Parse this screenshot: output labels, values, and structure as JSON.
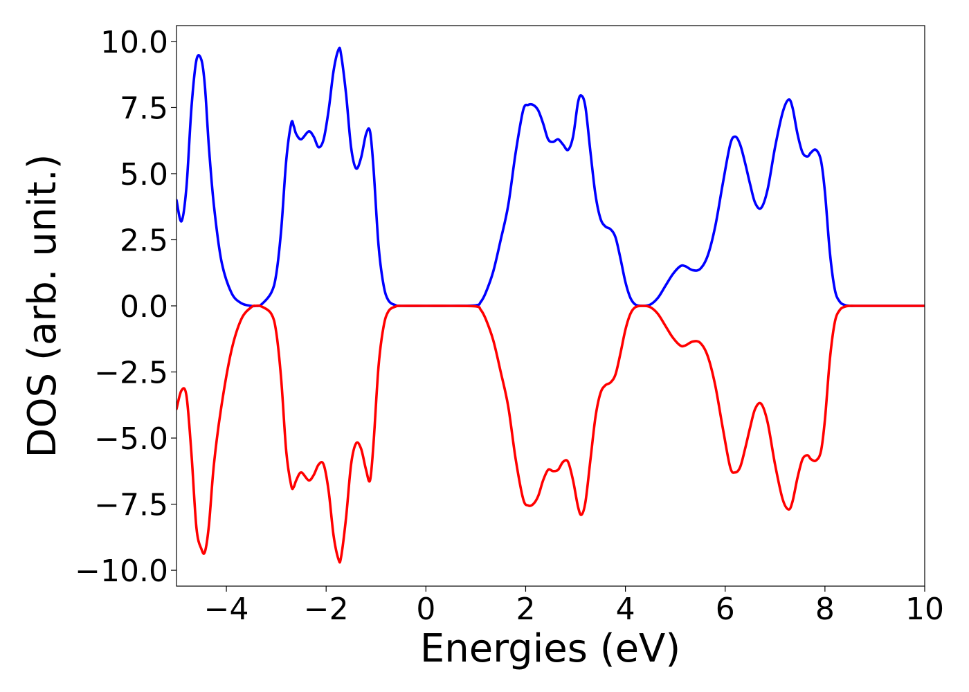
{
  "chart_data": {
    "type": "line",
    "title": "",
    "xlabel": "Energies (eV)",
    "ylabel": "DOS (arb. unit.)",
    "xlim": [
      -5,
      10
    ],
    "ylim": [
      -10.6,
      10.6
    ],
    "xticks": [
      -4,
      -2,
      0,
      2,
      4,
      6,
      8,
      10
    ],
    "xtick_labels": [
      "−4",
      "−2",
      "0",
      "2",
      "4",
      "6",
      "8",
      "10"
    ],
    "yticks": [
      10.0,
      7.5,
      5.0,
      2.5,
      0.0,
      -2.5,
      -5.0,
      -7.5,
      -10.0
    ],
    "ytick_labels": [
      "10.0",
      "7.5",
      "5.0",
      "2.5",
      "0.0",
      "−2.5",
      "−5.0",
      "−7.5",
      "−10.0"
    ],
    "grid": false,
    "legend": "none",
    "series": [
      {
        "color": "#0000ff",
        "x": [
          -5.0,
          -4.9,
          -4.8,
          -4.7,
          -4.6,
          -4.5,
          -4.43,
          -4.35,
          -4.25,
          -4.1,
          -3.9,
          -3.7,
          -3.5,
          -3.4,
          -3.3,
          -3.1,
          -3.0,
          -2.9,
          -2.8,
          -2.7,
          -2.65,
          -2.6,
          -2.5,
          -2.35,
          -2.25,
          -2.15,
          -2.05,
          -1.95,
          -1.85,
          -1.75,
          -1.7,
          -1.6,
          -1.5,
          -1.4,
          -1.3,
          -1.2,
          -1.12,
          -1.05,
          -0.95,
          -0.85,
          -0.75,
          -0.6,
          -0.5,
          0.0,
          0.5,
          1.0,
          1.1,
          1.2,
          1.35,
          1.5,
          1.65,
          1.8,
          1.95,
          2.05,
          2.15,
          2.25,
          2.35,
          2.45,
          2.55,
          2.65,
          2.75,
          2.85,
          2.95,
          3.05,
          3.12,
          3.2,
          3.3,
          3.4,
          3.5,
          3.6,
          3.7,
          3.8,
          3.9,
          4.0,
          4.1,
          4.2,
          4.35,
          4.5,
          4.65,
          4.8,
          4.95,
          5.1,
          5.2,
          5.35,
          5.5,
          5.65,
          5.8,
          5.95,
          6.1,
          6.2,
          6.3,
          6.4,
          6.5,
          6.6,
          6.72,
          6.85,
          7.0,
          7.15,
          7.27,
          7.35,
          7.45,
          7.55,
          7.65,
          7.72,
          7.82,
          7.92,
          8.0,
          8.1,
          8.2,
          8.3,
          8.4,
          8.5,
          8.6,
          9.0,
          10.0
        ],
        "y": [
          4.0,
          3.2,
          4.5,
          7.5,
          9.3,
          9.3,
          8.3,
          6.0,
          3.8,
          1.7,
          0.5,
          0.1,
          0.0,
          0.0,
          0.05,
          0.5,
          1.2,
          2.9,
          5.5,
          6.9,
          6.8,
          6.5,
          6.3,
          6.6,
          6.4,
          6.0,
          6.3,
          7.4,
          8.9,
          9.7,
          9.5,
          8.0,
          6.0,
          5.2,
          5.6,
          6.5,
          6.6,
          5.2,
          2.3,
          0.8,
          0.2,
          0.02,
          0.0,
          0.0,
          0.0,
          0.02,
          0.15,
          0.5,
          1.3,
          2.5,
          3.8,
          5.8,
          7.4,
          7.6,
          7.6,
          7.4,
          6.9,
          6.3,
          6.2,
          6.3,
          6.1,
          5.9,
          6.4,
          7.7,
          7.95,
          7.5,
          5.8,
          4.2,
          3.3,
          3.0,
          2.9,
          2.6,
          1.8,
          0.9,
          0.3,
          0.05,
          0.0,
          0.05,
          0.3,
          0.75,
          1.2,
          1.5,
          1.5,
          1.35,
          1.4,
          1.9,
          3.0,
          4.6,
          6.1,
          6.4,
          6.1,
          5.4,
          4.6,
          3.9,
          3.7,
          4.4,
          6.0,
          7.3,
          7.8,
          7.5,
          6.5,
          5.8,
          5.65,
          5.8,
          5.9,
          5.5,
          4.3,
          2.0,
          0.6,
          0.15,
          0.03,
          0.0,
          0.0,
          0.0,
          0.0
        ]
      },
      {
        "color": "#ff0000",
        "x": [
          -5.0,
          -4.9,
          -4.8,
          -4.7,
          -4.6,
          -4.5,
          -4.43,
          -4.35,
          -4.25,
          -4.1,
          -3.9,
          -3.7,
          -3.5,
          -3.4,
          -3.3,
          -3.1,
          -3.0,
          -2.9,
          -2.8,
          -2.7,
          -2.65,
          -2.6,
          -2.5,
          -2.35,
          -2.25,
          -2.15,
          -2.05,
          -1.95,
          -1.85,
          -1.75,
          -1.7,
          -1.6,
          -1.5,
          -1.4,
          -1.3,
          -1.2,
          -1.12,
          -1.05,
          -0.95,
          -0.85,
          -0.75,
          -0.6,
          -0.5,
          0.0,
          0.5,
          1.0,
          1.1,
          1.2,
          1.35,
          1.5,
          1.65,
          1.8,
          1.95,
          2.05,
          2.15,
          2.25,
          2.35,
          2.45,
          2.55,
          2.65,
          2.75,
          2.85,
          2.95,
          3.05,
          3.12,
          3.2,
          3.3,
          3.4,
          3.5,
          3.6,
          3.7,
          3.8,
          3.9,
          4.0,
          4.1,
          4.2,
          4.35,
          4.5,
          4.65,
          4.8,
          4.95,
          5.1,
          5.2,
          5.35,
          5.5,
          5.65,
          5.8,
          5.95,
          6.1,
          6.2,
          6.3,
          6.4,
          6.5,
          6.6,
          6.72,
          6.85,
          7.0,
          7.15,
          7.27,
          7.35,
          7.45,
          7.55,
          7.65,
          7.72,
          7.82,
          7.92,
          8.0,
          8.1,
          8.2,
          8.3,
          8.4,
          8.5,
          8.6,
          9.0,
          10.0
        ],
        "y": [
          -3.9,
          -3.2,
          -3.4,
          -5.6,
          -8.4,
          -9.2,
          -9.3,
          -8.3,
          -6.0,
          -3.8,
          -1.7,
          -0.5,
          -0.05,
          0.0,
          -0.02,
          -0.3,
          -1.0,
          -2.8,
          -5.5,
          -6.8,
          -6.85,
          -6.6,
          -6.3,
          -6.6,
          -6.4,
          -6.0,
          -6.0,
          -7.0,
          -8.7,
          -9.6,
          -9.5,
          -8.0,
          -6.0,
          -5.2,
          -5.4,
          -6.2,
          -6.6,
          -5.2,
          -2.3,
          -0.8,
          -0.2,
          -0.02,
          0.0,
          0.0,
          0.0,
          -0.02,
          -0.15,
          -0.5,
          -1.3,
          -2.5,
          -3.8,
          -5.8,
          -7.3,
          -7.55,
          -7.5,
          -7.2,
          -6.6,
          -6.2,
          -6.25,
          -6.2,
          -5.9,
          -5.9,
          -6.6,
          -7.6,
          -7.9,
          -7.4,
          -5.8,
          -4.2,
          -3.3,
          -3.0,
          -2.9,
          -2.6,
          -1.8,
          -0.9,
          -0.3,
          -0.05,
          0.0,
          -0.05,
          -0.3,
          -0.75,
          -1.2,
          -1.5,
          -1.5,
          -1.35,
          -1.4,
          -1.9,
          -3.0,
          -4.6,
          -6.1,
          -6.3,
          -6.1,
          -5.4,
          -4.6,
          -3.9,
          -3.7,
          -4.4,
          -6.0,
          -7.3,
          -7.7,
          -7.4,
          -6.5,
          -5.8,
          -5.65,
          -5.8,
          -5.85,
          -5.5,
          -4.3,
          -2.0,
          -0.6,
          -0.15,
          -0.03,
          0.0,
          0.0,
          0.0,
          0.0
        ]
      }
    ]
  }
}
